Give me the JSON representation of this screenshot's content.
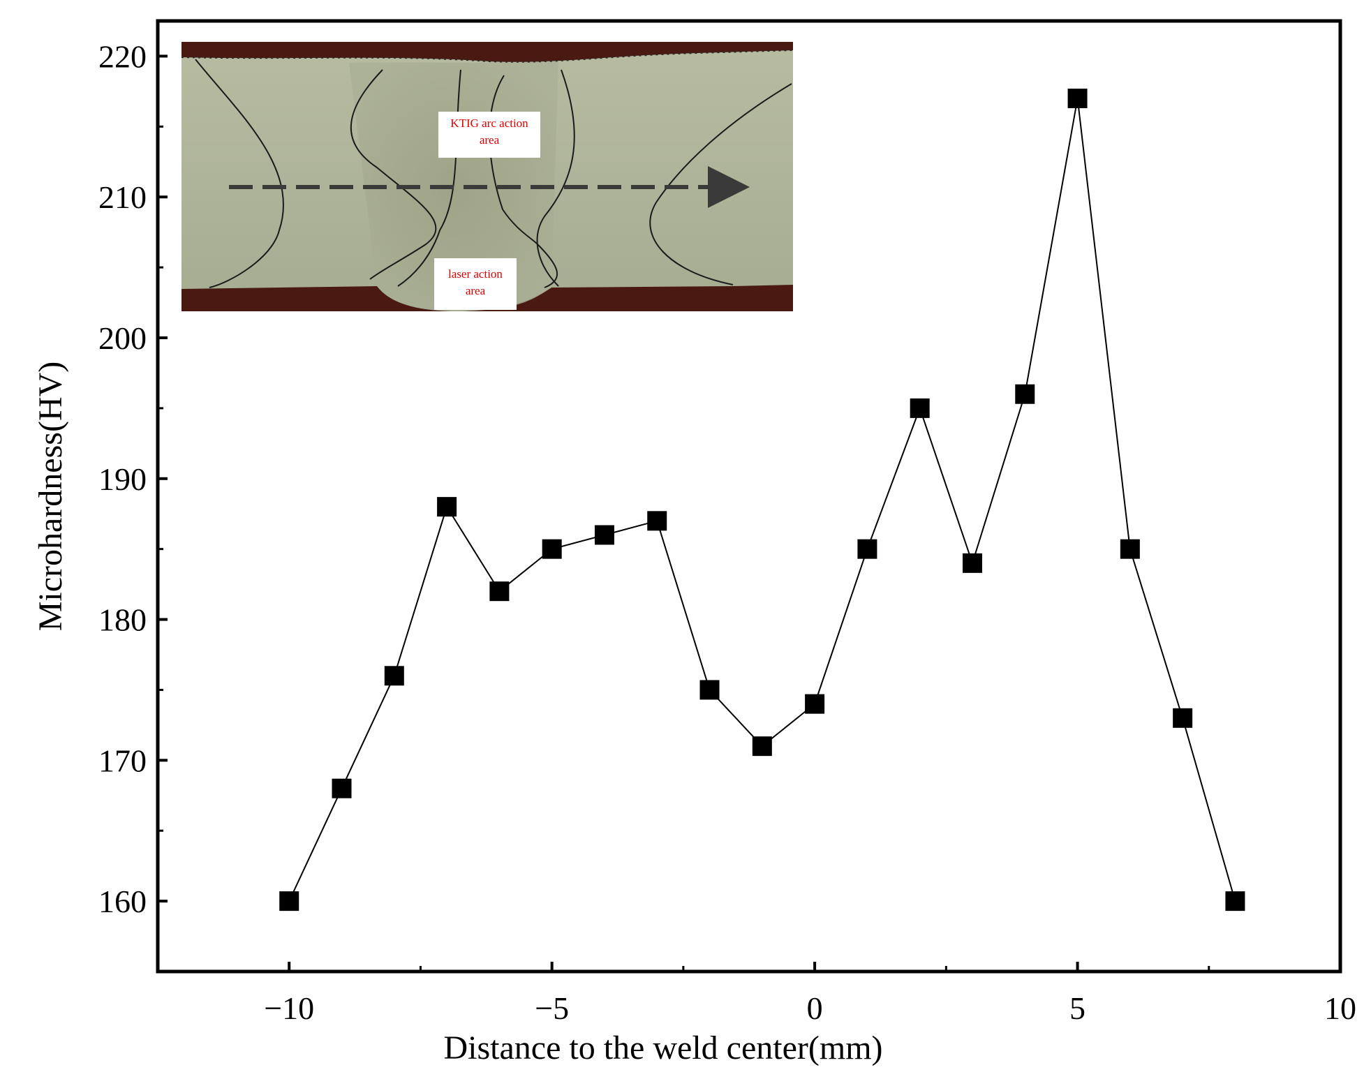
{
  "chart_data": {
    "type": "line",
    "title": "",
    "xlabel": "Distance to the weld center(mm)",
    "ylabel": "Microhardness(HV)",
    "xlim": [
      -12.5,
      10
    ],
    "ylim": [
      155,
      222.5
    ],
    "x_ticks": [
      -10,
      -5,
      0,
      5,
      10
    ],
    "x_tick_labels": [
      "−10",
      "−5",
      "0",
      "5",
      "10"
    ],
    "y_ticks": [
      160,
      170,
      180,
      190,
      200,
      210,
      220
    ],
    "y_tick_labels": [
      "160",
      "170",
      "180",
      "190",
      "200",
      "210",
      "220"
    ],
    "grid": false,
    "marker": "square",
    "series": [
      {
        "name": "",
        "color": "#000000",
        "x": [
          -10,
          -9,
          -8,
          -7,
          -6,
          -5,
          -4,
          -3,
          -2,
          -1,
          0,
          1,
          2,
          3,
          4,
          5,
          6,
          7,
          8
        ],
        "y": [
          160,
          168,
          176,
          188,
          182,
          185,
          186,
          187,
          175,
          171,
          174,
          185,
          195,
          184,
          196,
          217,
          185,
          173,
          160
        ]
      }
    ],
    "inset": {
      "description_labels": [
        "KTIG arc action area",
        "laser action area"
      ],
      "ktig_label": [
        "KTIG arc action",
        "area"
      ],
      "laser_label": [
        "laser action",
        "area"
      ]
    }
  }
}
